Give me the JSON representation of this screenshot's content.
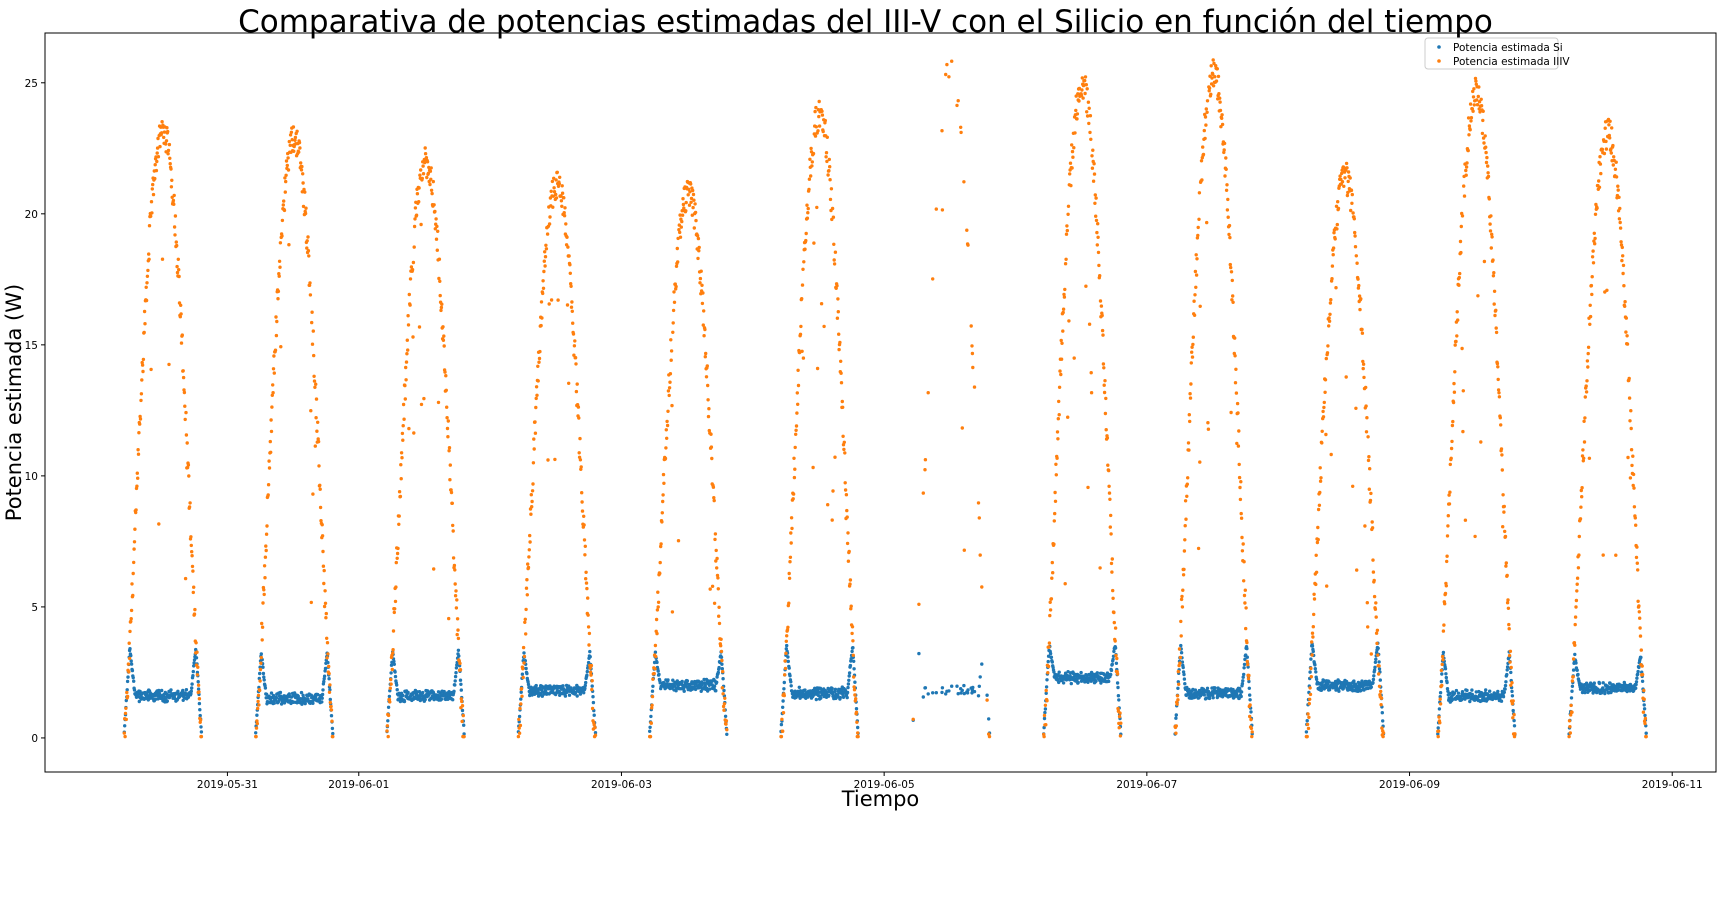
{
  "chart_data": {
    "type": "scatter",
    "title": "Comparativa de potencias estimadas del III-V con el Silicio en función del tiempo",
    "xlabel": "Tiempo",
    "ylabel": "Potencia estimada (W)",
    "xlim": [
      "2019-05-29T14:40",
      "2019-06-11T08:00"
    ],
    "ylim": [
      -1.3,
      26.9
    ],
    "x_ticks": [
      "2019-05-31",
      "2019-06-01",
      "2019-06-03",
      "2019-06-05",
      "2019-06-07",
      "2019-06-09",
      "2019-06-11"
    ],
    "y_ticks": [
      0,
      5,
      10,
      15,
      20,
      25
    ],
    "grid": false,
    "legend_position": "top-right",
    "days": [
      {
        "date": "2019-05-30",
        "iiiv_peak": 23.2,
        "si_plateau": 1.6,
        "si_edge": 3.5
      },
      {
        "date": "2019-05-31",
        "iiiv_peak": 22.9,
        "si_plateau": 1.5,
        "si_edge": 3.3
      },
      {
        "date": "2019-06-01",
        "iiiv_peak": 22.0,
        "si_plateau": 1.6,
        "si_edge": 3.4
      },
      {
        "date": "2019-06-02",
        "iiiv_peak": 21.1,
        "si_plateau": 1.8,
        "si_edge": 3.3
      },
      {
        "date": "2019-06-03",
        "iiiv_peak": 20.8,
        "si_plateau": 2.0,
        "si_edge": 3.3
      },
      {
        "date": "2019-06-04",
        "iiiv_peak": 23.8,
        "si_plateau": 1.7,
        "si_edge": 3.6
      },
      {
        "date": "2019-06-05",
        "iiiv_peak": 25.6,
        "si_plateau": 1.8,
        "si_edge": 3.6
      },
      {
        "date": "2019-06-06",
        "iiiv_peak": 24.9,
        "si_plateau": 2.3,
        "si_edge": 3.6
      },
      {
        "date": "2019-06-07",
        "iiiv_peak": 25.3,
        "si_plateau": 1.7,
        "si_edge": 3.6
      },
      {
        "date": "2019-06-08",
        "iiiv_peak": 21.4,
        "si_plateau": 2.0,
        "si_edge": 3.7
      },
      {
        "date": "2019-06-09",
        "iiiv_peak": 24.6,
        "si_plateau": 1.6,
        "si_edge": 3.3
      },
      {
        "date": "2019-06-10",
        "iiiv_peak": 23.1,
        "si_plateau": 1.9,
        "si_edge": 3.2
      }
    ],
    "series": [
      {
        "name": "Potencia estimada Si",
        "color": "#1f77b4"
      },
      {
        "name": "Potencia estimada IIIV",
        "color": "#ff7f0e"
      }
    ]
  }
}
